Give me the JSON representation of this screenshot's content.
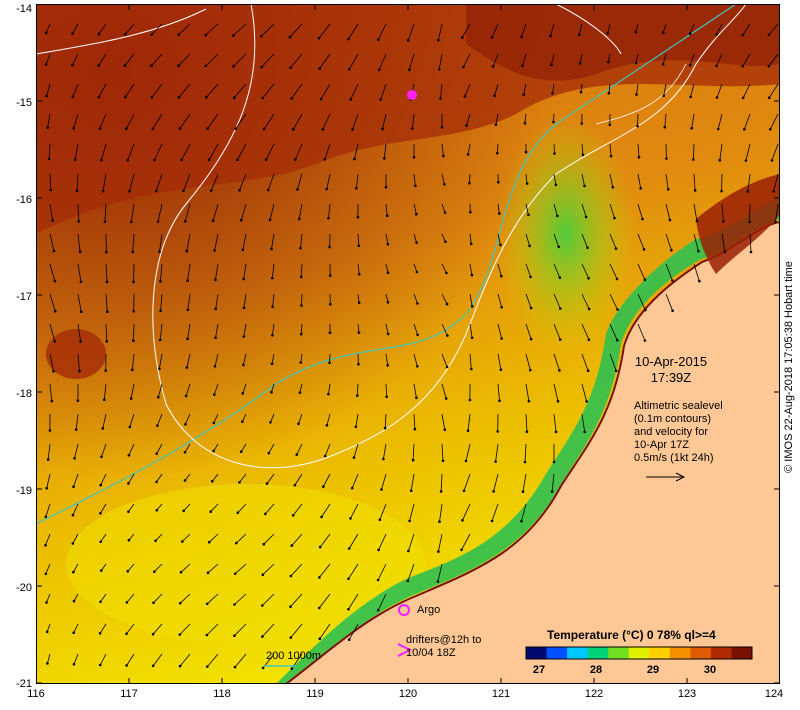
{
  "map": {
    "date": "10-Apr-2015",
    "time": "17:39Z",
    "altimetry_note": [
      "Altimetric sealevel",
      "(0.1m contours)",
      "and velocity for",
      "10-Apr 17Z",
      "0.5m/s (1kt 24h)"
    ],
    "argo_label": "Argo",
    "drifters_label": [
      "drifters@12h to",
      "10/04 18Z"
    ],
    "depth_legend": "200  1000m",
    "credit": "© IMOS 22-Aug-2018 17:05:38 Hobart time",
    "colorbar": {
      "title": "Temperature (°C) 0 78% ql>=4",
      "ticks": [
        "27",
        "28",
        "29",
        "30"
      ],
      "range": [
        26.5,
        31
      ],
      "colors": [
        "#000a6e",
        "#0050ff",
        "#00c8ff",
        "#00d27a",
        "#70e020",
        "#e0ef00",
        "#ffd000",
        "#f59000",
        "#e05a00",
        "#b02a00",
        "#7a1000"
      ]
    },
    "x_ticks": [
      "116",
      "117",
      "118",
      "119",
      "120",
      "121",
      "122",
      "123",
      "124"
    ],
    "y_ticks": [
      "-14",
      "-15",
      "-16",
      "-17",
      "-18",
      "-19",
      "-20",
      "-21"
    ],
    "colors": {
      "land": "#fdc896",
      "warm_sea": "#d97710",
      "hot_sea": "#a8280a",
      "cool_sea": "#f0e000",
      "contour_200m": "#40c8c0",
      "sealevel_contour": "#ffffff",
      "argo": "#ff20ff"
    }
  }
}
